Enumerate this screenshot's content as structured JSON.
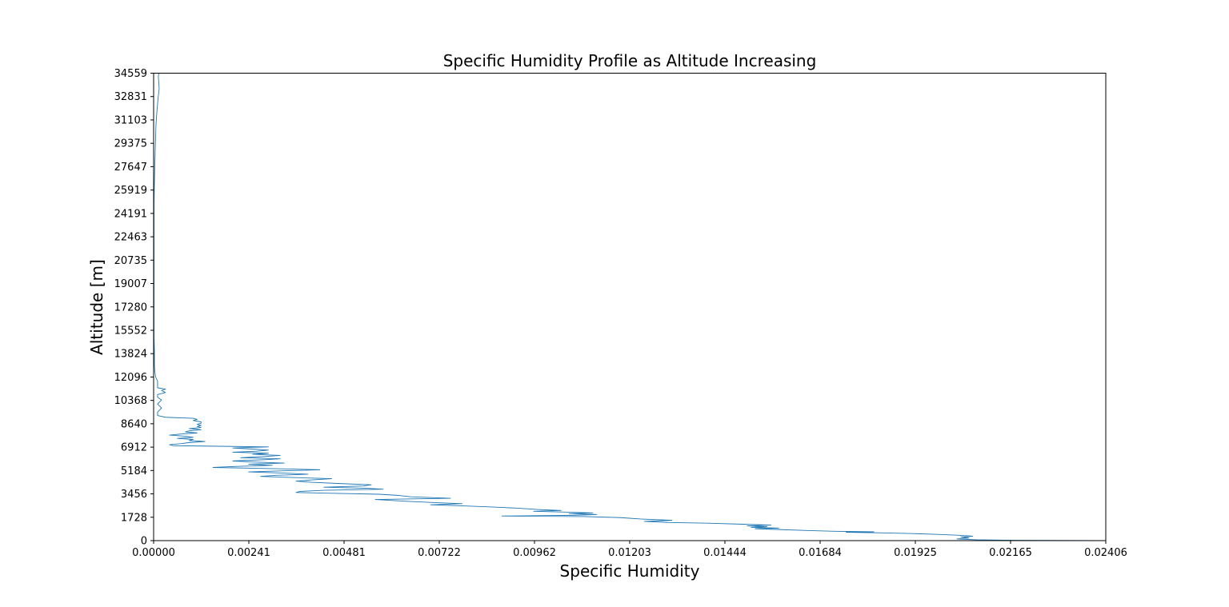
{
  "chart_data": {
    "type": "line",
    "title": "Specific Humidity Profile as Altitude Increasing",
    "xlabel": "Specific Humidity",
    "ylabel": "Altitude [m]",
    "xlim": [
      0,
      0.02406
    ],
    "ylim": [
      0,
      34559
    ],
    "grid": false,
    "line_color": "#1f77b4",
    "x_ticks": [
      "0.00000",
      "0.00241",
      "0.00481",
      "0.00722",
      "0.00962",
      "0.01203",
      "0.01444",
      "0.01684",
      "0.01925",
      "0.02165",
      "0.02406"
    ],
    "y_ticks": [
      "0",
      "1728",
      "3456",
      "5184",
      "6912",
      "8640",
      "10368",
      "12096",
      "13824",
      "15552",
      "17280",
      "19007",
      "20735",
      "22463",
      "24191",
      "25919",
      "27647",
      "29375",
      "31103",
      "32831",
      "34559"
    ],
    "series": [
      {
        "points": [
          [
            0.02406,
            0
          ],
          [
            0.0215,
            30
          ],
          [
            0.0208,
            60
          ],
          [
            0.0203,
            120
          ],
          [
            0.0206,
            200
          ],
          [
            0.0204,
            260
          ],
          [
            0.0207,
            330
          ],
          [
            0.0203,
            400
          ],
          [
            0.0198,
            460
          ],
          [
            0.0192,
            520
          ],
          [
            0.0184,
            570
          ],
          [
            0.0175,
            620
          ],
          [
            0.0182,
            650
          ],
          [
            0.0172,
            690
          ],
          [
            0.0165,
            750
          ],
          [
            0.0158,
            820
          ],
          [
            0.0152,
            880
          ],
          [
            0.0158,
            930
          ],
          [
            0.0151,
            980
          ],
          [
            0.0155,
            1030
          ],
          [
            0.015,
            1090
          ],
          [
            0.0156,
            1150
          ],
          [
            0.0148,
            1220
          ],
          [
            0.014,
            1290
          ],
          [
            0.013,
            1340
          ],
          [
            0.0124,
            1420
          ],
          [
            0.0131,
            1500
          ],
          [
            0.0123,
            1600
          ],
          [
            0.0118,
            1700
          ],
          [
            0.0109,
            1780
          ],
          [
            0.0088,
            1820
          ],
          [
            0.0106,
            1870
          ],
          [
            0.0112,
            1930
          ],
          [
            0.0105,
            1990
          ],
          [
            0.0111,
            2050
          ],
          [
            0.0104,
            2110
          ],
          [
            0.0096,
            2170
          ],
          [
            0.0103,
            2230
          ],
          [
            0.0097,
            2300
          ],
          [
            0.0092,
            2400
          ],
          [
            0.0086,
            2480
          ],
          [
            0.0079,
            2560
          ],
          [
            0.007,
            2650
          ],
          [
            0.0078,
            2730
          ],
          [
            0.0071,
            2810
          ],
          [
            0.0063,
            2920
          ],
          [
            0.0056,
            3040
          ],
          [
            0.0075,
            3130
          ],
          [
            0.0065,
            3240
          ],
          [
            0.0062,
            3340
          ],
          [
            0.0057,
            3430
          ],
          [
            0.0044,
            3510
          ],
          [
            0.0036,
            3560
          ],
          [
            0.0037,
            3640
          ],
          [
            0.0043,
            3720
          ],
          [
            0.0058,
            3800
          ],
          [
            0.0054,
            3870
          ],
          [
            0.0043,
            3950
          ],
          [
            0.0053,
            4040
          ],
          [
            0.0055,
            4130
          ],
          [
            0.0047,
            4220
          ],
          [
            0.004,
            4310
          ],
          [
            0.0036,
            4400
          ],
          [
            0.004,
            4490
          ],
          [
            0.0045,
            4580
          ],
          [
            0.0036,
            4660
          ],
          [
            0.0027,
            4750
          ],
          [
            0.0031,
            4830
          ],
          [
            0.0039,
            4910
          ],
          [
            0.0033,
            4990
          ],
          [
            0.0024,
            5080
          ],
          [
            0.0033,
            5160
          ],
          [
            0.0042,
            5240
          ],
          [
            0.0031,
            5320
          ],
          [
            0.0015,
            5410
          ],
          [
            0.0021,
            5490
          ],
          [
            0.003,
            5570
          ],
          [
            0.0024,
            5650
          ],
          [
            0.0033,
            5730
          ],
          [
            0.0025,
            5810
          ],
          [
            0.002,
            5890
          ],
          [
            0.0028,
            5980
          ],
          [
            0.0032,
            6050
          ],
          [
            0.0022,
            6130
          ],
          [
            0.0028,
            6220
          ],
          [
            0.0032,
            6300
          ],
          [
            0.0025,
            6380
          ],
          [
            0.0029,
            6460
          ],
          [
            0.002,
            6540
          ],
          [
            0.0026,
            6610
          ],
          [
            0.0029,
            6690
          ],
          [
            0.0025,
            6770
          ],
          [
            0.002,
            6850
          ],
          [
            0.0029,
            6930
          ],
          [
            0.0005,
            7020
          ],
          [
            0.0004,
            7090
          ],
          [
            0.0007,
            7170
          ],
          [
            0.0009,
            7250
          ],
          [
            0.0013,
            7330
          ],
          [
            0.0009,
            7400
          ],
          [
            0.001,
            7480
          ],
          [
            0.0006,
            7560
          ],
          [
            0.001,
            7640
          ],
          [
            0.0008,
            7720
          ],
          [
            0.0004,
            7800
          ],
          [
            0.0007,
            7880
          ],
          [
            0.0011,
            7960
          ],
          [
            0.0008,
            8040
          ],
          [
            0.0009,
            8120
          ],
          [
            0.0012,
            8200
          ],
          [
            0.0009,
            8280
          ],
          [
            0.0012,
            8360
          ],
          [
            0.0011,
            8440
          ],
          [
            0.0012,
            8520
          ],
          [
            0.0011,
            8600
          ],
          [
            0.0012,
            8680
          ],
          [
            0.0012,
            8780
          ],
          [
            0.001,
            8880
          ],
          [
            0.0011,
            8960
          ],
          [
            0.001,
            9040
          ],
          [
            0.0003,
            9120
          ],
          [
            0.0001,
            9250
          ],
          [
            0.0001,
            9500
          ],
          [
            0.0002,
            9800
          ],
          [
            0.0001,
            10100
          ],
          [
            0.0002,
            10400
          ],
          [
            0.0001,
            10600
          ],
          [
            0.0001,
            10800
          ],
          [
            0.0003,
            10950
          ],
          [
            0.0002,
            11100
          ],
          [
            0.0003,
            11200
          ],
          [
            0.0001,
            11300
          ],
          [
            0.0001,
            11500
          ],
          [
            0.0001,
            11800
          ],
          [
            5e-05,
            12100
          ],
          [
            3e-05,
            12500
          ],
          [
            2e-05,
            13000
          ],
          [
            2e-05,
            14000
          ],
          [
            1e-05,
            15000
          ],
          [
            1e-05,
            17000
          ],
          [
            1e-05,
            19000
          ],
          [
            1e-05,
            21000
          ],
          [
            1e-05,
            23000
          ],
          [
            1e-05,
            25000
          ],
          [
            2e-05,
            26500
          ],
          [
            3e-05,
            27800
          ],
          [
            4e-05,
            28800
          ],
          [
            5e-05,
            29800
          ],
          [
            6e-05,
            30800
          ],
          [
            8e-05,
            31600
          ],
          [
            0.0001,
            32300
          ],
          [
            0.00012,
            32900
          ],
          [
            0.00014,
            33400
          ],
          [
            0.00013,
            33900
          ],
          [
            0.00012,
            34300
          ],
          [
            0.00013,
            34559
          ]
        ]
      }
    ]
  }
}
